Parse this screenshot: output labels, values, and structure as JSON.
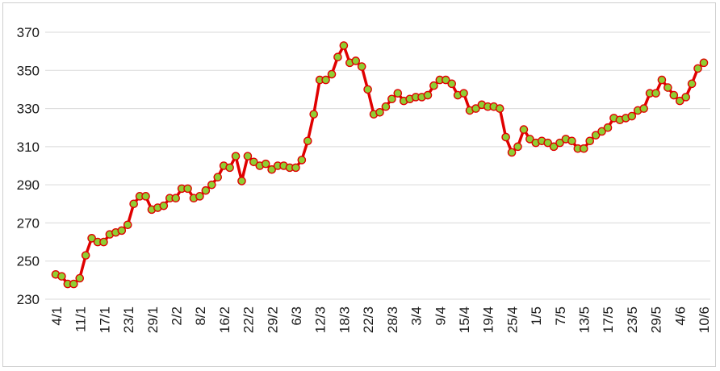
{
  "chart_data": {
    "type": "line",
    "title": "",
    "xlabel": "",
    "ylabel": "",
    "ylim": [
      230,
      370
    ],
    "yticks": [
      230,
      250,
      270,
      290,
      310,
      330,
      350,
      370
    ],
    "grid": "horizontal",
    "legend": "none",
    "colors": {
      "line": "#e00000",
      "marker_fill": "#8fce33",
      "marker_edge": "#e00000",
      "grid": "#d9d9d9"
    },
    "x_tick_labels": [
      "4/1",
      "11/1",
      "17/1",
      "23/1",
      "29/1",
      "2/2",
      "8/2",
      "16/2",
      "22/2",
      "29/2",
      "6/3",
      "12/3",
      "18/3",
      "22/3",
      "28/3",
      "3/4",
      "9/4",
      "15/4",
      "19/4",
      "25/4",
      "1/5",
      "7/5",
      "13/5",
      "17/5",
      "23/5",
      "29/5",
      "4/6",
      "10/6"
    ],
    "series": [
      {
        "values": [
          243,
          242,
          238,
          238,
          241,
          253,
          262,
          260,
          260,
          264,
          265,
          266,
          269,
          280,
          284,
          284,
          277,
          278,
          279,
          283,
          283,
          288,
          288,
          283,
          284,
          287,
          290,
          294,
          300,
          299,
          305,
          292,
          305,
          302,
          300,
          301,
          298,
          300,
          300,
          299,
          299,
          303,
          313,
          327,
          345,
          345,
          348,
          357,
          363,
          354,
          355,
          352,
          340,
          327,
          328,
          331,
          335,
          338,
          334,
          335,
          336,
          336,
          337,
          342,
          345,
          345,
          343,
          337,
          338,
          329,
          330,
          332,
          331,
          331,
          330,
          315,
          307,
          310,
          319,
          314,
          312,
          313,
          312,
          310,
          312,
          314,
          313,
          309,
          309,
          313,
          316,
          318,
          320,
          325,
          324,
          325,
          326,
          329,
          330,
          338,
          338,
          345,
          341,
          337,
          334,
          336,
          343,
          351,
          354
        ]
      }
    ]
  }
}
